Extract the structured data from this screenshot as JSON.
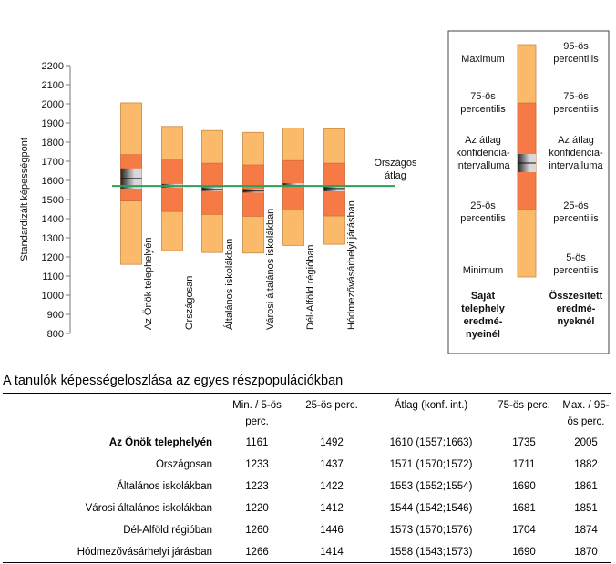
{
  "chart_data": {
    "type": "box",
    "ylabel": "Standardizált képességpont",
    "ylim": [
      800,
      2200
    ],
    "yticks": [
      800,
      900,
      1000,
      1100,
      1200,
      1300,
      1400,
      1500,
      1600,
      1700,
      1800,
      1900,
      2000,
      2100,
      2200
    ],
    "reference_line": {
      "label_line1": "Országos",
      "label_line2": "átlag",
      "value": 1571
    },
    "categories": [
      "Az Önök telephelyén",
      "Országosan",
      "Általános iskolákban",
      "Városi általános iskolákban",
      "Dél-Alföld régióban",
      "Hódmezővásárhelyi járásban"
    ],
    "series": [
      {
        "min": 1161,
        "p25": 1492,
        "mean": 1610,
        "ci_low": 1557,
        "ci_high": 1663,
        "p75": 1735,
        "max": 2005
      },
      {
        "min": 1233,
        "p25": 1437,
        "mean": 1571,
        "ci_low": 1570,
        "ci_high": 1572,
        "p75": 1711,
        "max": 1882
      },
      {
        "min": 1223,
        "p25": 1422,
        "mean": 1553,
        "ci_low": 1552,
        "ci_high": 1554,
        "p75": 1690,
        "max": 1861
      },
      {
        "min": 1220,
        "p25": 1412,
        "mean": 1544,
        "ci_low": 1542,
        "ci_high": 1546,
        "p75": 1681,
        "max": 1851
      },
      {
        "min": 1260,
        "p25": 1446,
        "mean": 1573,
        "ci_low": 1570,
        "ci_high": 1576,
        "p75": 1704,
        "max": 1874
      },
      {
        "min": 1266,
        "p25": 1414,
        "mean": 1558,
        "ci_low": 1543,
        "ci_high": 1573,
        "p75": 1690,
        "max": 1870
      }
    ],
    "colors": {
      "outer": "#fbb96a",
      "inner": "#f57a45",
      "line": "#2f9f5a",
      "ci_dark": "#222222",
      "ci_light": "#d8d8d8"
    }
  },
  "legend": {
    "left": [
      "Maximum",
      "75-ös\npercentilis",
      "Az átlag\nkonfidencia-\nintervalluma",
      "25-ös\npercentilis",
      "Minimum"
    ],
    "right": [
      "95-ös\npercentilis",
      "75-ös\npercentilis",
      "Az átlag\nkonfidencia-\nintervalluma",
      "25-ös\npercentilis",
      "5-ös\npercentilis"
    ],
    "caption_left": "Saját\ntelephely\neredmé-\nnyeinél",
    "caption_right": "Összesített\neredmé-\nnyeknél"
  },
  "caption": "A tanulók képességeloszlása az egyes részpopulációkban",
  "table": {
    "headers": [
      "Min. / 5-ös perc.",
      "25-ös perc.",
      "Átlag (konf. int.)",
      "75-ös perc.",
      "Max. / 95-ös perc."
    ],
    "rows": [
      {
        "label": "Az Önök telephelyén",
        "cells": [
          "1161",
          "1492",
          "1610 (1557;1663)",
          "1735",
          "2005"
        ]
      },
      {
        "label": "Országosan",
        "cells": [
          "1233",
          "1437",
          "1571 (1570;1572)",
          "1711",
          "1882"
        ]
      },
      {
        "label": "Általános iskolákban",
        "cells": [
          "1223",
          "1422",
          "1553 (1552;1554)",
          "1690",
          "1861"
        ]
      },
      {
        "label": "Városi általános iskolákban",
        "cells": [
          "1220",
          "1412",
          "1544 (1542;1546)",
          "1681",
          "1851"
        ]
      },
      {
        "label": "Dél-Alföld régióban",
        "cells": [
          "1260",
          "1446",
          "1573 (1570;1576)",
          "1704",
          "1874"
        ]
      },
      {
        "label": "Hódmezővásárhelyi járásban",
        "cells": [
          "1266",
          "1414",
          "1558 (1543;1573)",
          "1690",
          "1870"
        ]
      }
    ]
  }
}
